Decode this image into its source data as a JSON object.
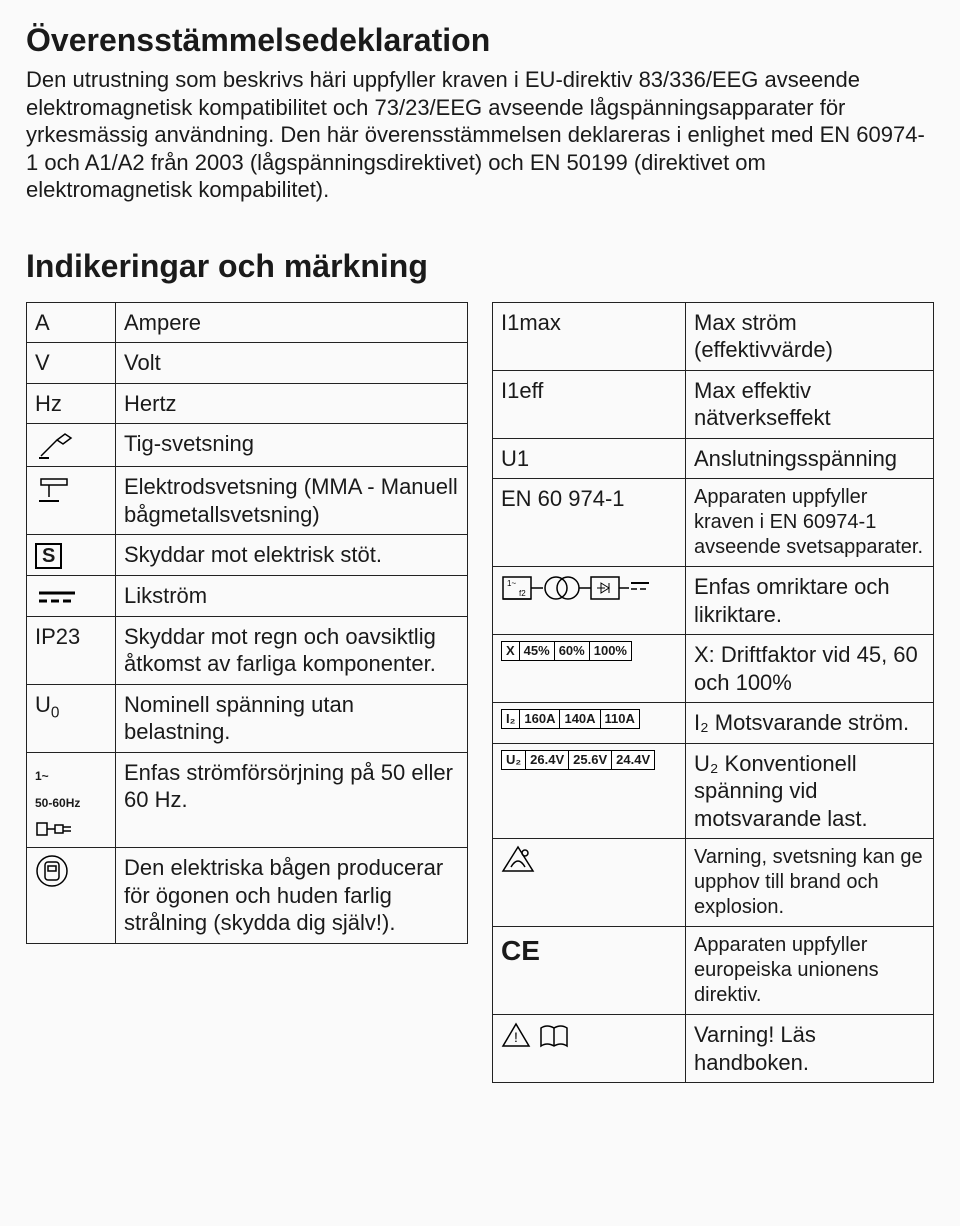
{
  "title1": "Överensstämmelsedeklaration",
  "para1": "Den utrustning som beskrivs häri uppfyller kraven i EU-direktiv 83/336/EEG avseende elektromagnetisk kompatibilitet och 73/23/EEG avseende lågspänningsapparater för yrkesmässig användning. Den här överensstämmelsen deklareras i enlighet med EN 60974-1 och A1/A2 från 2003 (lågspänningsdirektivet) och EN 50199 (direktivet om elektromagnetisk kompabilitet).",
  "title2": "Indikeringar och märkning",
  "left": [
    {
      "sym": "A",
      "desc": "Ampere"
    },
    {
      "sym": "V",
      "desc": "Volt"
    },
    {
      "sym": "Hz",
      "desc": "Hertz"
    },
    {
      "icon": "tig",
      "desc": "Tig-svetsning"
    },
    {
      "icon": "mma",
      "desc": "Elektrodsvetsning (MMA - Manuell bågmetallsvetsning)"
    },
    {
      "icon": "sbox",
      "desc": "Skyddar mot elektrisk stöt."
    },
    {
      "icon": "dc",
      "desc": "Likström"
    },
    {
      "sym": "IP23",
      "desc": "Skyddar mot regn och oavsiktlig åtkomst av farliga komponenter."
    },
    {
      "icon": "u0",
      "desc": "Nominell spänning utan belastning."
    },
    {
      "icon": "plug",
      "desc": "Enfas strömförsörjning på 50 eller 60 Hz."
    },
    {
      "icon": "mask",
      "desc": "Den elektriska bågen producerar för ögonen och huden farlig strålning (skydda dig själv!)."
    }
  ],
  "right": [
    {
      "sym": "I1max",
      "desc": "Max ström (effektivvärde)"
    },
    {
      "sym": "I1eff",
      "desc": "Max effektiv nätverkseffekt"
    },
    {
      "sym": "U1",
      "desc": "Anslutningsspänning"
    },
    {
      "sym": "EN 60 974-1",
      "desc": "Apparaten uppfyller kraven i EN 60974-1 avseende svetsapparater.",
      "small": true
    },
    {
      "icon": "inverter",
      "desc": "Enfas omriktare och likriktare."
    },
    {
      "icon": "xrow",
      "desc": "X: Driftfaktor vid 45, 60 och 100%"
    },
    {
      "icon": "i2row",
      "desc": "I₂ Motsvarande ström."
    },
    {
      "icon": "u2row",
      "desc": "U₂ Konventionell spänning vid motsvarande last."
    },
    {
      "icon": "fire",
      "desc": "Varning, svetsning kan ge upphov till brand och explosion.",
      "small": true
    },
    {
      "icon": "ce",
      "desc": "Apparaten uppfyller europeiska unionens direktiv.",
      "small": true
    },
    {
      "icon": "manual",
      "desc": "Varning! Läs handboken."
    }
  ],
  "xrow": {
    "head": "X",
    "cells": [
      "45%",
      "60%",
      "100%"
    ]
  },
  "i2row": {
    "head": "I₂",
    "cells": [
      "160A",
      "140A",
      "110A"
    ]
  },
  "u2row": {
    "head": "U₂",
    "cells": [
      "26.4V",
      "25.6V",
      "24.4V"
    ]
  },
  "colors": {
    "border": "#222222",
    "bg": "#fafafa",
    "text": "#1a1a1a"
  }
}
